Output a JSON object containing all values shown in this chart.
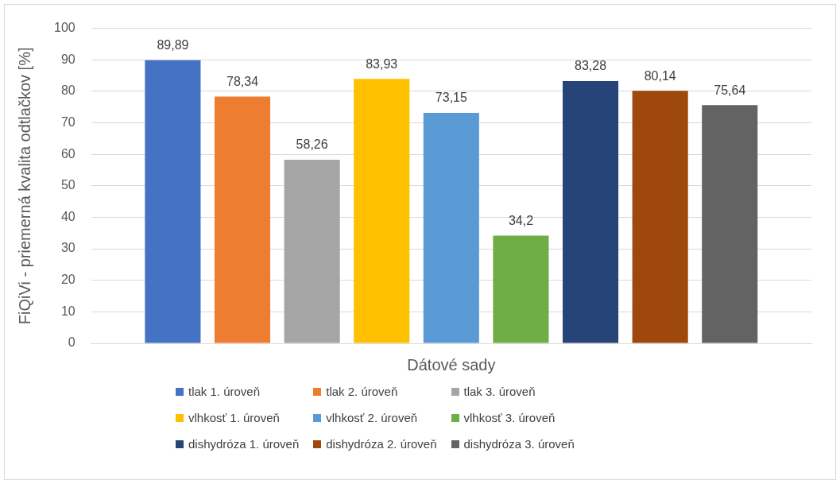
{
  "chart_data": {
    "type": "bar",
    "xlabel": "Dátové sady",
    "ylabel": "FiQiVi - priemerná kvalita odtlačkov [%]",
    "categories": [
      null
    ],
    "series": [
      {
        "name": "tlak 1. úroveň",
        "color": "#4472c4",
        "values": [
          89.89
        ],
        "value_labels": [
          "89,89"
        ]
      },
      {
        "name": "tlak 2. úroveň",
        "color": "#ed7d31",
        "values": [
          78.34
        ],
        "value_labels": [
          "78,34"
        ]
      },
      {
        "name": "tlak 3. úroveň",
        "color": "#a5a5a5",
        "values": [
          58.26
        ],
        "value_labels": [
          "58,26"
        ]
      },
      {
        "name": "vlhkosť 1. úroveň",
        "color": "#ffc000",
        "values": [
          83.93
        ],
        "value_labels": [
          "83,93"
        ]
      },
      {
        "name": "vlhkosť 2. úroveň",
        "color": "#5b9bd5",
        "values": [
          73.15
        ],
        "value_labels": [
          "73,15"
        ]
      },
      {
        "name": "vlhkosť 3. úroveň",
        "color": "#70ad47",
        "values": [
          34.2
        ],
        "value_labels": [
          "34,2"
        ]
      },
      {
        "name": "dishydróza 1. úroveň",
        "color": "#264478",
        "values": [
          83.28
        ],
        "value_labels": [
          "83,28"
        ]
      },
      {
        "name": "dishydróza 2. úroveň",
        "color": "#9e480e",
        "values": [
          80.14
        ],
        "value_labels": [
          "80,14"
        ]
      },
      {
        "name": "dishydróza 3. úroveň",
        "color": "#636363",
        "values": [
          75.64
        ],
        "value_labels": [
          "75,64"
        ]
      }
    ],
    "ylim": [
      0,
      100
    ],
    "yticks": [
      0,
      10,
      20,
      30,
      40,
      50,
      60,
      70,
      80,
      90,
      100
    ],
    "grid": "y",
    "legend": "bottom"
  }
}
